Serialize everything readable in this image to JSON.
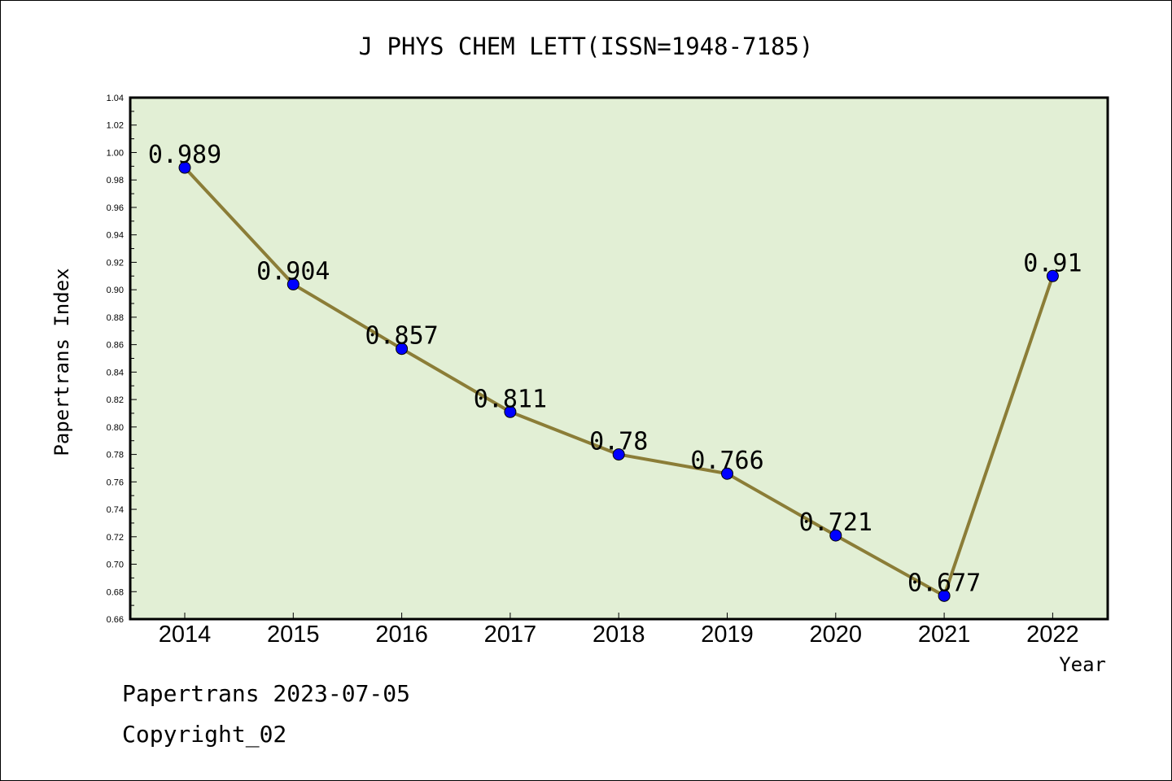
{
  "chart_data": {
    "type": "line",
    "title": "J PHYS CHEM LETT(ISSN=1948-7185)",
    "xlabel": "Year",
    "ylabel": "Papertrans Index",
    "categories": [
      "2014",
      "2015",
      "2016",
      "2017",
      "2018",
      "2019",
      "2020",
      "2021",
      "2022"
    ],
    "series": [
      {
        "values": [
          0.989,
          0.904,
          0.857,
          0.811,
          0.78,
          0.766,
          0.721,
          0.677,
          0.91
        ],
        "labels": [
          "0.989",
          "0.904",
          "0.857",
          "0.811",
          "0.78",
          "0.766",
          "0.721",
          "0.677",
          "0.91"
        ]
      }
    ],
    "ylim": [
      0.66,
      1.04
    ],
    "yticks": [
      "0.66",
      "0.68",
      "0.70",
      "0.72",
      "0.74",
      "0.76",
      "0.78",
      "0.80",
      "0.82",
      "0.84",
      "0.86",
      "0.88",
      "0.90",
      "0.92",
      "0.94",
      "0.96",
      "0.98",
      "1.00",
      "1.02",
      "1.04"
    ],
    "grid": false,
    "colors": {
      "plot_background": "#e2efd5",
      "line": "#8b7d37",
      "marker": "#0000ff"
    }
  },
  "footer": {
    "line1": "Papertrans 2023-07-05",
    "line2": "Copyright_02"
  }
}
